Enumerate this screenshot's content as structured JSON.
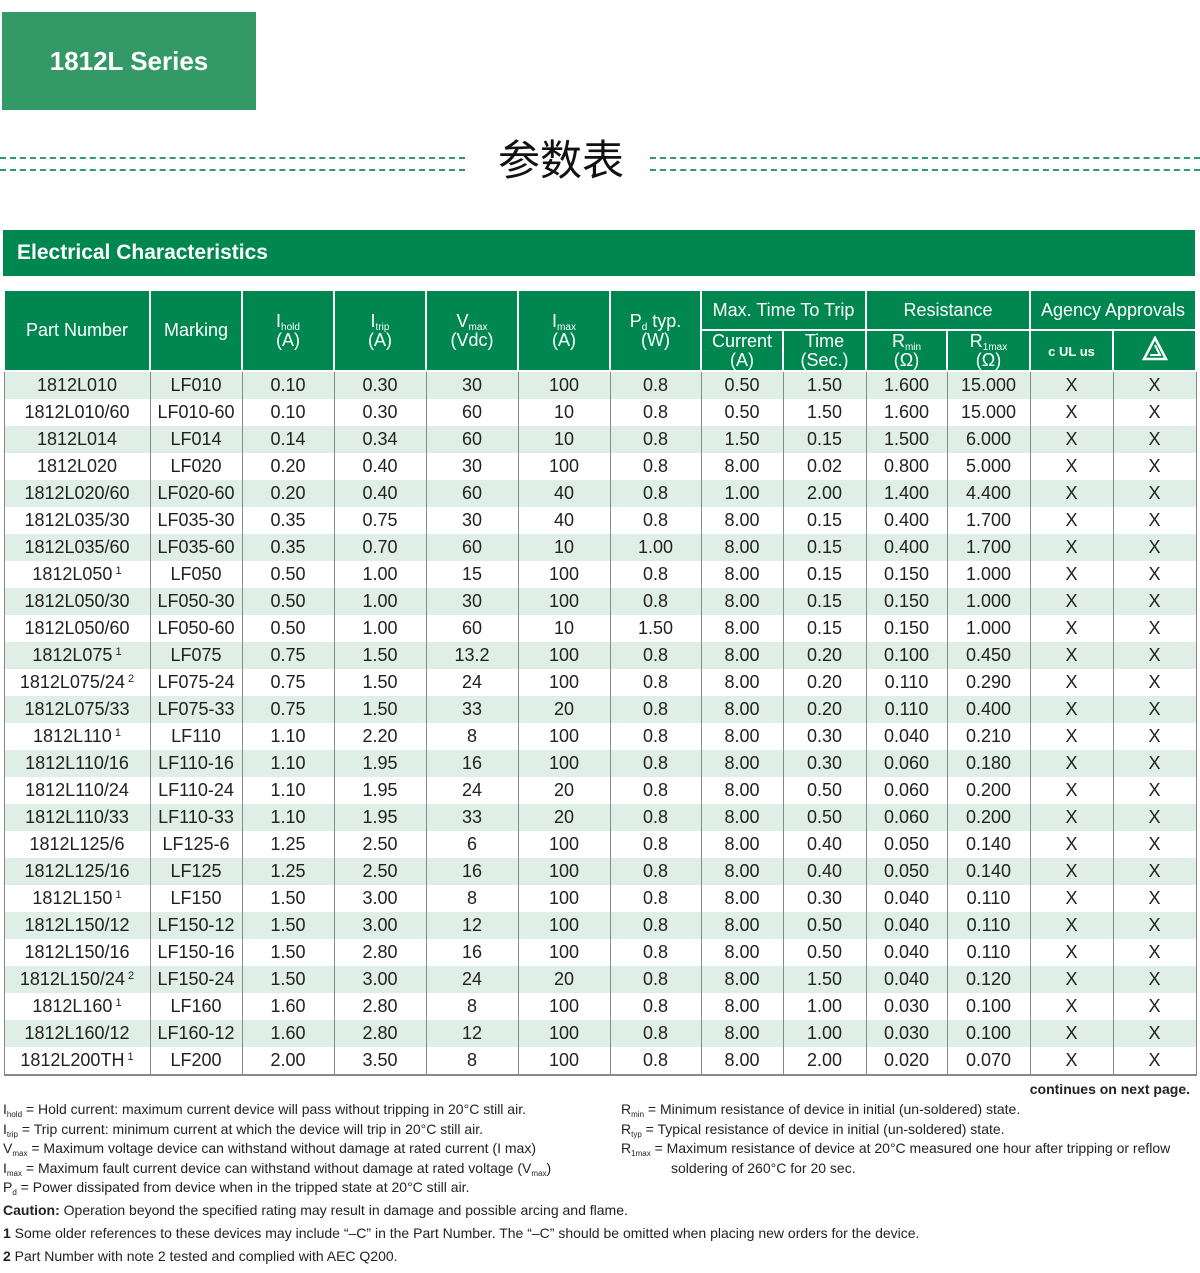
{
  "series_title": "1812L Series",
  "cn_title": "参数表",
  "section_title": "Electrical Characteristics",
  "colors": {
    "series_green": "#339966",
    "header_green": "#00874f",
    "row_shade": "#dfeee6"
  },
  "headers": {
    "part_number": "Part Number",
    "marking": "Marking",
    "ihold": {
      "sym": "I",
      "sub": "hold",
      "unit": "(A)"
    },
    "itrip": {
      "sym": "I",
      "sub": "trip",
      "unit": "(A)"
    },
    "vmax": {
      "sym": "V",
      "sub": "max",
      "unit": "(Vdc)"
    },
    "imax": {
      "sym": "I",
      "sub": "max",
      "unit": "(A)"
    },
    "pd": {
      "sym": "P",
      "sub": "d",
      "suffix": "typ.",
      "unit": "(W)"
    },
    "max_time": "Max. Time To Trip",
    "current": "Current",
    "current_unit": "(A)",
    "time": "Time",
    "time_unit": "(Sec.)",
    "resistance": "Resistance",
    "rmin": {
      "sym": "R",
      "sub": "min",
      "unit": "(Ω)"
    },
    "r1max": {
      "sym": "R",
      "sub": "1max",
      "unit": "(Ω)"
    },
    "agency": "Agency Approvals",
    "ul_icon": "cULus-icon",
    "tuv_icon": "tuv-triangle-icon",
    "ul_text": "c UL us"
  },
  "rows": [
    [
      "1812L010",
      "",
      "LF010",
      "0.10",
      "0.30",
      "30",
      "100",
      "0.8",
      "0.50",
      "1.50",
      "1.600",
      "15.000",
      "X",
      "X"
    ],
    [
      "1812L010/60",
      "",
      "LF010-60",
      "0.10",
      "0.30",
      "60",
      "10",
      "0.8",
      "0.50",
      "1.50",
      "1.600",
      "15.000",
      "X",
      "X"
    ],
    [
      "1812L014",
      "",
      "LF014",
      "0.14",
      "0.34",
      "60",
      "10",
      "0.8",
      "1.50",
      "0.15",
      "1.500",
      "6.000",
      "X",
      "X"
    ],
    [
      "1812L020",
      "",
      "LF020",
      "0.20",
      "0.40",
      "30",
      "100",
      "0.8",
      "8.00",
      "0.02",
      "0.800",
      "5.000",
      "X",
      "X"
    ],
    [
      "1812L020/60",
      "",
      "LF020-60",
      "0.20",
      "0.40",
      "60",
      "40",
      "0.8",
      "1.00",
      "2.00",
      "1.400",
      "4.400",
      "X",
      "X"
    ],
    [
      "1812L035/30",
      "",
      "LF035-30",
      "0.35",
      "0.75",
      "30",
      "40",
      "0.8",
      "8.00",
      "0.15",
      "0.400",
      "1.700",
      "X",
      "X"
    ],
    [
      "1812L035/60",
      "",
      "LF035-60",
      "0.35",
      "0.70",
      "60",
      "10",
      "1.00",
      "8.00",
      "0.15",
      "0.400",
      "1.700",
      "X",
      "X"
    ],
    [
      "1812L050",
      "1",
      "LF050",
      "0.50",
      "1.00",
      "15",
      "100",
      "0.8",
      "8.00",
      "0.15",
      "0.150",
      "1.000",
      "X",
      "X"
    ],
    [
      "1812L050/30",
      "",
      "LF050-30",
      "0.50",
      "1.00",
      "30",
      "100",
      "0.8",
      "8.00",
      "0.15",
      "0.150",
      "1.000",
      "X",
      "X"
    ],
    [
      "1812L050/60",
      "",
      "LF050-60",
      "0.50",
      "1.00",
      "60",
      "10",
      "1.50",
      "8.00",
      "0.15",
      "0.150",
      "1.000",
      "X",
      "X"
    ],
    [
      "1812L075",
      "1",
      "LF075",
      "0.75",
      "1.50",
      "13.2",
      "100",
      "0.8",
      "8.00",
      "0.20",
      "0.100",
      "0.450",
      "X",
      "X"
    ],
    [
      "1812L075/24",
      "2",
      "LF075-24",
      "0.75",
      "1.50",
      "24",
      "100",
      "0.8",
      "8.00",
      "0.20",
      "0.110",
      "0.290",
      "X",
      "X"
    ],
    [
      "1812L075/33",
      "",
      "LF075-33",
      "0.75",
      "1.50",
      "33",
      "20",
      "0.8",
      "8.00",
      "0.20",
      "0.110",
      "0.400",
      "X",
      "X"
    ],
    [
      "1812L110",
      "1",
      "LF110",
      "1.10",
      "2.20",
      "8",
      "100",
      "0.8",
      "8.00",
      "0.30",
      "0.040",
      "0.210",
      "X",
      "X"
    ],
    [
      "1812L110/16",
      "",
      "LF110-16",
      "1.10",
      "1.95",
      "16",
      "100",
      "0.8",
      "8.00",
      "0.30",
      "0.060",
      "0.180",
      "X",
      "X"
    ],
    [
      "1812L110/24",
      "",
      "LF110-24",
      "1.10",
      "1.95",
      "24",
      "20",
      "0.8",
      "8.00",
      "0.50",
      "0.060",
      "0.200",
      "X",
      "X"
    ],
    [
      "1812L110/33",
      "",
      "LF110-33",
      "1.10",
      "1.95",
      "33",
      "20",
      "0.8",
      "8.00",
      "0.50",
      "0.060",
      "0.200",
      "X",
      "X"
    ],
    [
      "1812L125/6",
      "",
      "LF125-6",
      "1.25",
      "2.50",
      "6",
      "100",
      "0.8",
      "8.00",
      "0.40",
      "0.050",
      "0.140",
      "X",
      "X"
    ],
    [
      "1812L125/16",
      "",
      "LF125",
      "1.25",
      "2.50",
      "16",
      "100",
      "0.8",
      "8.00",
      "0.40",
      "0.050",
      "0.140",
      "X",
      "X"
    ],
    [
      "1812L150",
      "1",
      "LF150",
      "1.50",
      "3.00",
      "8",
      "100",
      "0.8",
      "8.00",
      "0.30",
      "0.040",
      "0.110",
      "X",
      "X"
    ],
    [
      "1812L150/12",
      "",
      "LF150-12",
      "1.50",
      "3.00",
      "12",
      "100",
      "0.8",
      "8.00",
      "0.50",
      "0.040",
      "0.110",
      "X",
      "X"
    ],
    [
      "1812L150/16",
      "",
      "LF150-16",
      "1.50",
      "2.80",
      "16",
      "100",
      "0.8",
      "8.00",
      "0.50",
      "0.040",
      "0.110",
      "X",
      "X"
    ],
    [
      "1812L150/24",
      "2",
      "LF150-24",
      "1.50",
      "3.00",
      "24",
      "20",
      "0.8",
      "8.00",
      "1.50",
      "0.040",
      "0.120",
      "X",
      "X"
    ],
    [
      "1812L160",
      "1",
      "LF160",
      "1.60",
      "2.80",
      "8",
      "100",
      "0.8",
      "8.00",
      "1.00",
      "0.030",
      "0.100",
      "X",
      "X"
    ],
    [
      "1812L160/12",
      "",
      "LF160-12",
      "1.60",
      "2.80",
      "12",
      "100",
      "0.8",
      "8.00",
      "1.00",
      "0.030",
      "0.100",
      "X",
      "X"
    ],
    [
      "1812L200TH",
      "1",
      "LF200",
      "2.00",
      "3.50",
      "8",
      "100",
      "0.8",
      "8.00",
      "2.00",
      "0.020",
      "0.070",
      "X",
      "X"
    ]
  ],
  "continues": "continues on next page.",
  "legend_left": [
    {
      "sym": "I",
      "sub": "hold",
      "text": "= Hold current: maximum current device will pass without tripping in 20°C still air."
    },
    {
      "sym": "I",
      "sub": "trip",
      "text": "= Trip current: minimum current at which the device will trip in 20°C still air."
    },
    {
      "sym": "V",
      "sub": "max",
      "text": "= Maximum voltage device can withstand without damage at rated current (I max)"
    },
    {
      "sym": "I",
      "sub": "max",
      "text": "= Maximum fault current device can withstand without damage at rated voltage (V",
      "tail_sub": "max",
      "tail": ")"
    },
    {
      "sym": "P",
      "sub": "d",
      "text": "= Power dissipated from device when in the tripped state at 20°C still air."
    }
  ],
  "legend_right": [
    {
      "sym": "R",
      "sub": "min",
      "text": "= Minimum resistance of device in initial (un-soldered) state."
    },
    {
      "sym": "R",
      "sub": "typ",
      "text": "= Typical resistance of device in initial (un-soldered) state."
    },
    {
      "sym": "R",
      "sub": "1max",
      "text": "= Maximum resistance of device at 20°C measured one hour after tripping or reflow"
    },
    {
      "sym": "",
      "sub": "",
      "text": "soldering of 260°C for 20 sec."
    }
  ],
  "caution": {
    "label": "Caution:",
    "text": " Operation beyond the specified rating may result in damage and possible arcing and flame."
  },
  "note1": {
    "num": "1",
    "text": " Some older references to these devices may include “–C” in the Part Number. The “–C” should be omitted when placing new orders for the device."
  },
  "note2": {
    "num": "2",
    "text": " Part Number with note 2 tested and complied with AEC Q200."
  }
}
